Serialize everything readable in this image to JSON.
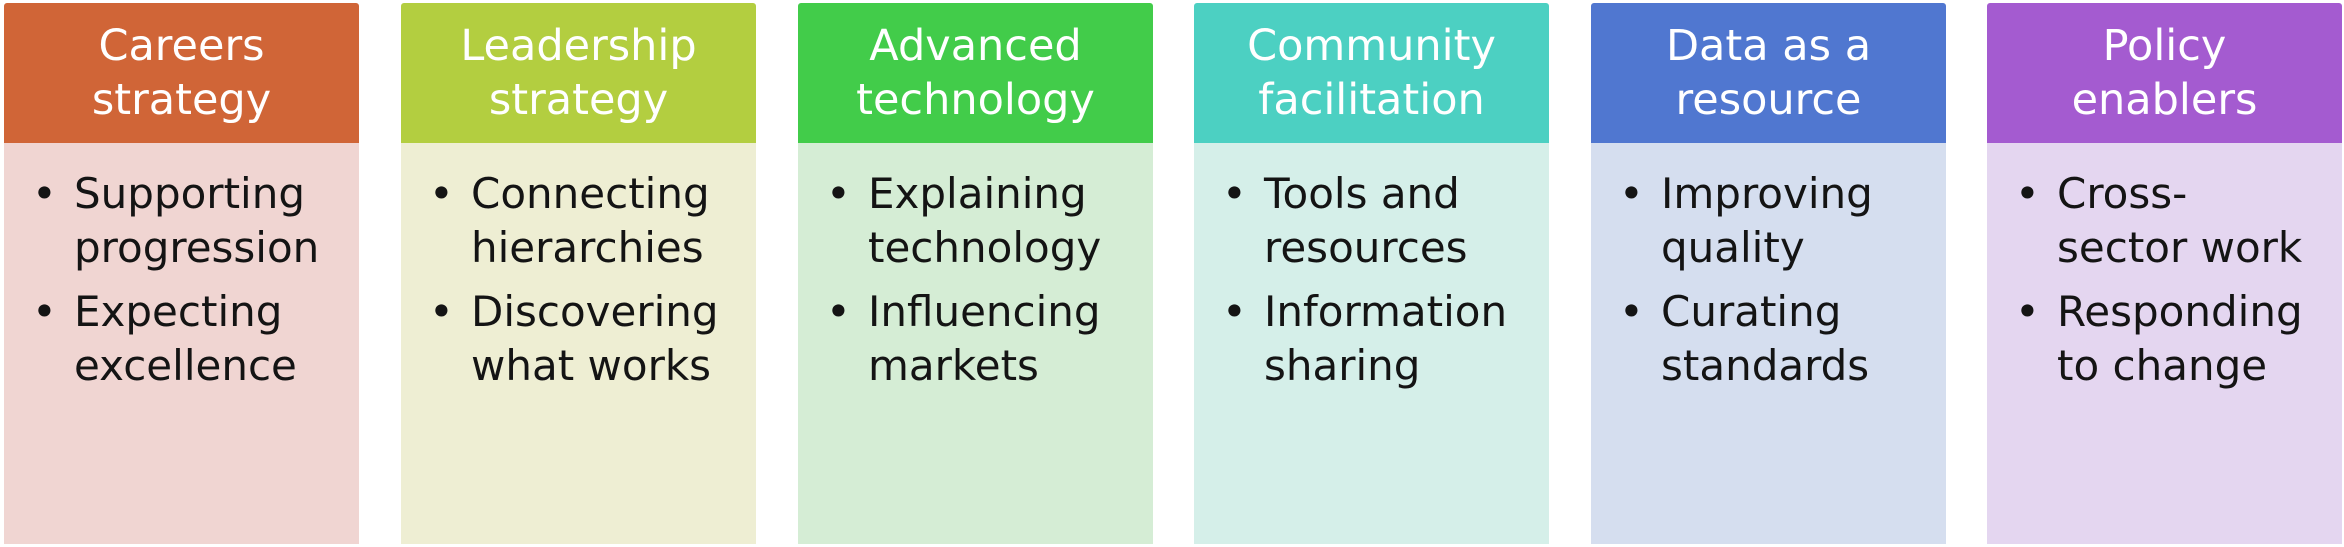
{
  "columns": [
    {
      "title": [
        "Careers",
        "strategy"
      ],
      "header_color": "#D06537",
      "body_color": "#F0D5D2",
      "bullets": [
        [
          "Supporting",
          "progression"
        ],
        [
          "Expecting",
          "excellence"
        ]
      ]
    },
    {
      "title": [
        "Leadership",
        "strategy"
      ],
      "header_color": "#B3CE40",
      "body_color": "#EEEED3",
      "bullets": [
        [
          "Connecting",
          "hierarchies"
        ],
        [
          "Discovering",
          "what works"
        ]
      ]
    },
    {
      "title": [
        "Advanced",
        "technology"
      ],
      "header_color": "#42CC4A",
      "body_color": "#D5EDD5",
      "bullets": [
        [
          "Explaining",
          "technology"
        ],
        [
          "Influencing",
          "markets"
        ]
      ]
    },
    {
      "title": [
        "Community",
        "facilitation"
      ],
      "header_color": "#4CD0C2",
      "body_color": "#D5EFE9",
      "bullets": [
        [
          "Tools and",
          "resources"
        ],
        [
          "Information",
          "sharing"
        ]
      ]
    },
    {
      "title": [
        "Data as a",
        "resource"
      ],
      "header_color": "#5077D0",
      "body_color": "#D5DEEF",
      "bullets": [
        [
          "Improving",
          "quality"
        ],
        [
          "Curating",
          "standards"
        ]
      ]
    },
    {
      "title": [
        "Policy",
        "enablers"
      ],
      "header_color": "#A45BD0",
      "body_color": "#E4D6F0",
      "bullets": [
        [
          "Cross-",
          "sector work"
        ],
        [
          "Responding",
          "to change"
        ]
      ]
    }
  ]
}
